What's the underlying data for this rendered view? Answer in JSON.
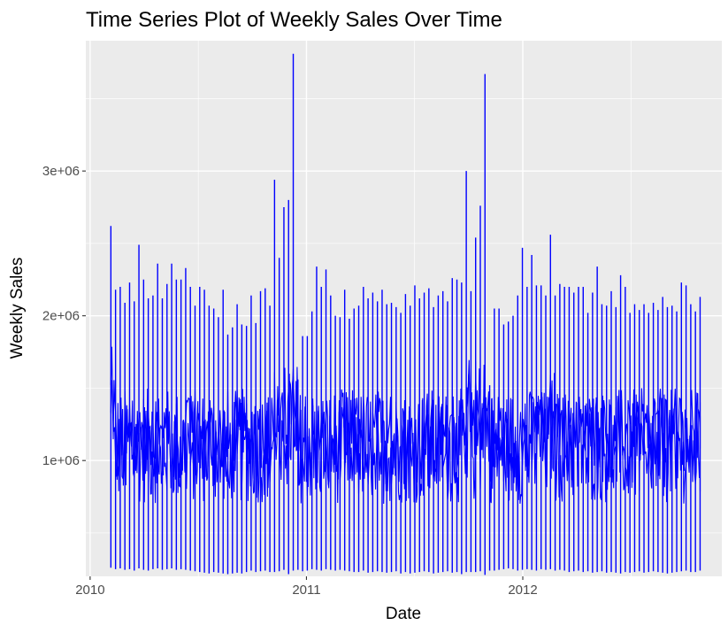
{
  "chart_data": {
    "type": "line",
    "title": "Time Series Plot of Weekly Sales Over Time",
    "xlabel": "Date",
    "ylabel": "Weekly Sales",
    "x_ticks": [
      {
        "value": 2010,
        "label": "2010"
      },
      {
        "value": 2011,
        "label": "2011"
      },
      {
        "value": 2012,
        "label": "2012"
      }
    ],
    "y_ticks": [
      {
        "value": 1000000,
        "label": "1e+06"
      },
      {
        "value": 2000000,
        "label": "2e+06"
      },
      {
        "value": 3000000,
        "label": "3e+06"
      }
    ],
    "xlim": [
      2009.98,
      2012.92
    ],
    "ylim": [
      200000,
      3900000
    ],
    "grid": true,
    "legend": "none",
    "colors": {
      "line": "#0000ff",
      "panel": "#ebebeb",
      "grid": "#ffffff"
    },
    "series": [
      {
        "x_range": [
          "2010-02-05",
          "2012-10-26"
        ],
        "frequency": "weekly, many stores overlaid",
        "weekly_max": [
          2620000,
          2180000,
          2200000,
          2090000,
          2230000,
          2100000,
          2490000,
          2250000,
          2120000,
          2140000,
          2360000,
          2120000,
          2220000,
          2360000,
          2250000,
          2250000,
          2330000,
          2200000,
          2070000,
          2200000,
          2180000,
          2070000,
          2050000,
          1990000,
          2180000,
          1870000,
          1920000,
          2080000,
          1940000,
          1930000,
          2140000,
          1950000,
          2170000,
          2190000,
          2070000,
          2940000,
          2400000,
          2750000,
          2800000,
          3810000,
          1560000,
          1860000,
          1860000,
          2030000,
          2340000,
          2200000,
          2320000,
          2140000,
          2000000,
          1990000,
          2180000,
          1980000,
          2050000,
          2070000,
          2200000,
          2120000,
          2160000,
          2100000,
          2180000,
          2080000,
          2090000,
          2060000,
          2020000,
          2150000,
          2070000,
          2210000,
          2120000,
          2160000,
          2190000,
          2060000,
          2140000,
          2170000,
          2100000,
          2260000,
          2250000,
          2230000,
          3000000,
          2170000,
          2540000,
          2760000,
          3670000,
          1520000,
          2050000,
          2050000,
          1940000,
          1960000,
          2000000,
          2140000,
          2470000,
          2200000,
          2420000,
          2210000,
          2210000,
          2140000,
          2560000,
          2140000,
          2220000,
          2200000,
          2200000,
          2160000,
          2200000,
          2200000,
          2020000,
          2160000,
          2340000,
          2080000,
          2070000,
          2170000,
          2060000,
          2280000,
          2200000,
          2020000,
          2080000,
          2040000,
          2080000,
          2020000,
          2090000,
          2040000,
          2130000,
          2060000,
          2070000,
          2030000,
          2230000,
          2210000,
          2080000,
          2030000,
          2130000
        ],
        "weekly_min": [
          260000,
          250000,
          255000,
          245000,
          250000,
          240000,
          255000,
          245000,
          240000,
          250000,
          255000,
          245000,
          250000,
          255000,
          245000,
          250000,
          245000,
          240000,
          235000,
          230000,
          225000,
          220000,
          230000,
          225000,
          220000,
          215000,
          220000,
          225000,
          220000,
          230000,
          240000,
          230000,
          235000,
          240000,
          230000,
          230000,
          235000,
          245000,
          215000,
          240000,
          245000,
          235000,
          240000,
          250000,
          245000,
          240000,
          250000,
          245000,
          240000,
          245000,
          240000,
          235000,
          230000,
          230000,
          240000,
          225000,
          230000,
          235000,
          230000,
          225000,
          230000,
          235000,
          220000,
          230000,
          220000,
          225000,
          230000,
          235000,
          230000,
          220000,
          225000,
          230000,
          235000,
          225000,
          230000,
          215000,
          230000,
          230000,
          230000,
          235000,
          210000,
          240000,
          240000,
          245000,
          250000,
          255000,
          250000,
          240000,
          245000,
          250000,
          245000,
          240000,
          250000,
          245000,
          250000,
          240000,
          245000,
          240000,
          230000,
          235000,
          240000,
          230000,
          235000,
          225000,
          230000,
          235000,
          225000,
          230000,
          225000,
          220000,
          230000,
          225000,
          230000,
          235000,
          225000,
          230000,
          235000,
          230000,
          225000,
          220000,
          225000,
          230000,
          235000,
          240000,
          230000,
          230000,
          240000
        ]
      }
    ]
  }
}
